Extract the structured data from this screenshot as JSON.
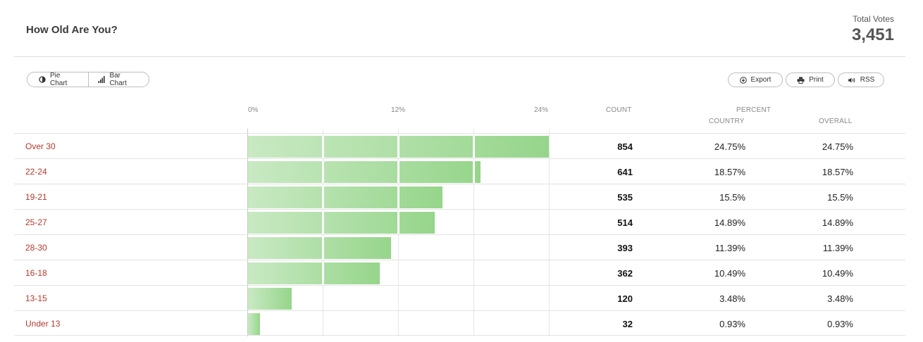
{
  "poll": {
    "title": "How Old Are You?",
    "total_label": "Total Votes",
    "total_value": "3,451"
  },
  "toolbar": {
    "pie_label": "Pie Chart",
    "bar_label": "Bar Chart",
    "export_label": "Export",
    "print_label": "Print",
    "rss_label": "RSS"
  },
  "columns": {
    "count": "COUNT",
    "percent": "PERCENT",
    "country": "COUNTRY",
    "overall": "OVERALL"
  },
  "chart_data": {
    "type": "bar",
    "orientation": "horizontal",
    "xlim": [
      0,
      24
    ],
    "ticks": [
      "0%",
      "12%",
      "24%"
    ],
    "categories": [
      "Over 30",
      "22-24",
      "19-21",
      "25-27",
      "28-30",
      "16-18",
      "13-15",
      "Under 13"
    ],
    "values": [
      24.75,
      18.57,
      15.5,
      14.89,
      11.39,
      10.49,
      3.48,
      0.93
    ]
  },
  "rows": [
    {
      "label": "Over 30",
      "count": "854",
      "country": "24.75%",
      "overall": "24.75%"
    },
    {
      "label": "22-24",
      "count": "641",
      "country": "18.57%",
      "overall": "18.57%"
    },
    {
      "label": "19-21",
      "count": "535",
      "country": "15.5%",
      "overall": "15.5%"
    },
    {
      "label": "25-27",
      "count": "514",
      "country": "14.89%",
      "overall": "14.89%"
    },
    {
      "label": "28-30",
      "count": "393",
      "country": "11.39%",
      "overall": "11.39%"
    },
    {
      "label": "16-18",
      "count": "362",
      "country": "10.49%",
      "overall": "10.49%"
    },
    {
      "label": "13-15",
      "count": "120",
      "country": "3.48%",
      "overall": "3.48%"
    },
    {
      "label": "Under 13",
      "count": "32",
      "country": "0.93%",
      "overall": "0.93%"
    }
  ],
  "colors": {
    "bar_light": "#c9e9c3",
    "bar_dark": "#96d58b",
    "label_red": "#b23a2e"
  }
}
